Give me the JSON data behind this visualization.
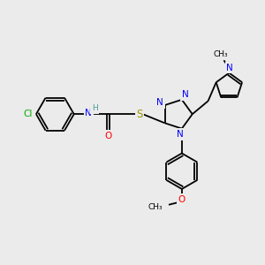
{
  "background_color": "#ebebeb",
  "bond_color": "#000000",
  "atom_colors": {
    "N": "#0000ff",
    "O": "#ff0000",
    "S": "#999900",
    "Cl": "#00aa00",
    "H": "#4d9999",
    "C": "#000000"
  },
  "figsize": [
    3.0,
    3.0
  ],
  "dpi": 100,
  "xlim": [
    0,
    10
  ],
  "ylim": [
    0,
    10
  ]
}
